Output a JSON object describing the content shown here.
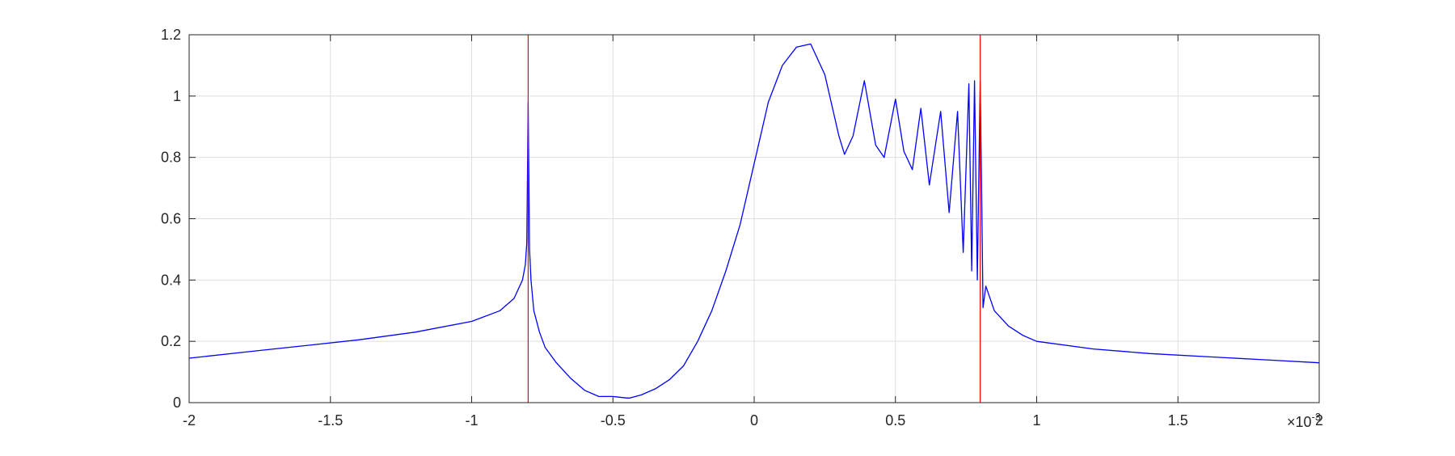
{
  "chart_data": {
    "type": "line",
    "title": "",
    "xlabel": "",
    "ylabel": "",
    "xlim": [
      -0.002,
      0.002
    ],
    "ylim": [
      0,
      1.2
    ],
    "x_ticks": [
      -0.002,
      -0.0015,
      -0.001,
      -0.0005,
      0,
      0.0005,
      0.001,
      0.0015,
      0.002
    ],
    "x_tick_labels": [
      "-2",
      "-1.5",
      "-1",
      "-0.5",
      "0",
      "0.5",
      "1",
      "1.5",
      "2"
    ],
    "x_exponent": {
      "base": "10",
      "power": "-3",
      "times": "×"
    },
    "y_ticks": [
      0,
      0.2,
      0.4,
      0.6,
      0.8,
      1.0,
      1.2
    ],
    "y_tick_labels": [
      "0",
      "0.2",
      "0.4",
      "0.6",
      "0.8",
      "1",
      "1.2"
    ],
    "grid": true,
    "colors": {
      "curve": "#0000ff",
      "markers": "#ff0000",
      "grid": "#dfdfdf",
      "axes": "#262626"
    },
    "series": [
      {
        "color": "#0000ff",
        "x": [
          -0.002,
          -0.0018,
          -0.0016,
          -0.0014,
          -0.0012,
          -0.001,
          -0.0009,
          -0.00085,
          -0.00082,
          -0.00081,
          -0.000805,
          -0.0008,
          -0.000795,
          -0.00079,
          -0.00078,
          -0.00076,
          -0.00074,
          -0.0007,
          -0.00065,
          -0.0006,
          -0.00055,
          -0.0005,
          -0.00045,
          -0.00044,
          -0.0004,
          -0.00035,
          -0.0003,
          -0.00025,
          -0.0002,
          -0.00015,
          -0.0001,
          -5e-05,
          0,
          5e-05,
          0.0001,
          0.00015,
          0.0002,
          0.00025,
          0.0003,
          0.00032,
          0.00035,
          0.00039,
          0.00043,
          0.00046,
          0.0005,
          0.00053,
          0.00056,
          0.00059,
          0.00062,
          0.00066,
          0.00069,
          0.00072,
          0.00074,
          0.00076,
          0.00077,
          0.00078,
          0.00079,
          0.0008,
          0.000805,
          0.00081,
          0.00082,
          0.00085,
          0.0009,
          0.00095,
          0.001,
          0.0012,
          0.0014,
          0.0016,
          0.0018,
          0.002
        ],
        "y": [
          0.145,
          0.165,
          0.185,
          0.205,
          0.23,
          0.265,
          0.3,
          0.34,
          0.4,
          0.45,
          0.52,
          0.98,
          0.5,
          0.4,
          0.3,
          0.23,
          0.18,
          0.13,
          0.08,
          0.04,
          0.02,
          0.02,
          0.015,
          0.015,
          0.025,
          0.045,
          0.075,
          0.12,
          0.2,
          0.3,
          0.43,
          0.58,
          0.78,
          0.98,
          1.1,
          1.16,
          1.17,
          1.07,
          0.87,
          0.81,
          0.87,
          1.05,
          0.84,
          0.8,
          0.99,
          0.82,
          0.76,
          0.96,
          0.71,
          0.95,
          0.62,
          0.95,
          0.49,
          1.04,
          0.43,
          1.05,
          0.4,
          1.05,
          0.71,
          0.31,
          0.38,
          0.3,
          0.25,
          0.22,
          0.2,
          0.175,
          0.16,
          0.15,
          0.14,
          0.13
        ]
      }
    ],
    "vertical_lines": [
      {
        "x": -0.0008,
        "color": "#ff0000"
      },
      {
        "x": 0.0008,
        "color": "#ff0000"
      }
    ]
  }
}
